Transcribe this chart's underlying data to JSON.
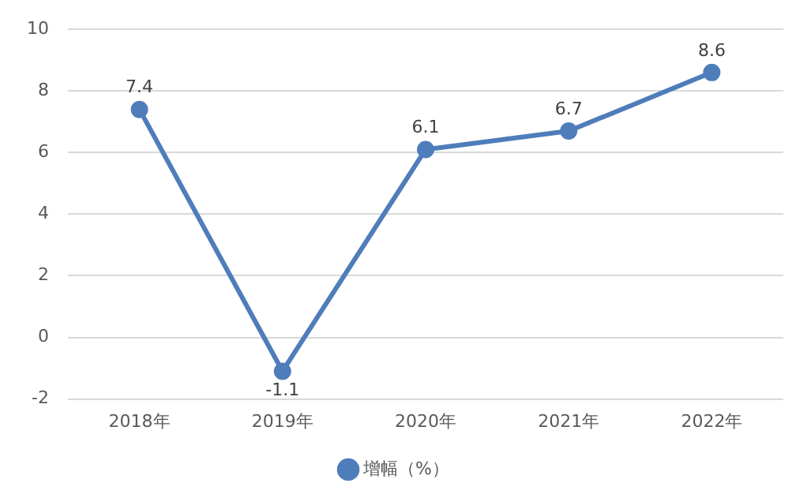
{
  "chart_data": {
    "type": "line",
    "categories": [
      "2018年",
      "2019年",
      "2020年",
      "2021年",
      "2022年"
    ],
    "series": [
      {
        "name": "增幅（%）",
        "color": "#4f7dba",
        "values": [
          7.4,
          -1.1,
          6.1,
          6.7,
          8.6
        ]
      }
    ],
    "ylim": [
      -2,
      10
    ],
    "yticks": [
      -2,
      0,
      2,
      4,
      6,
      8,
      10
    ],
    "grid": "y",
    "legend": "bottom",
    "marker": "circle",
    "line_style": "solid",
    "data_labels": true
  }
}
